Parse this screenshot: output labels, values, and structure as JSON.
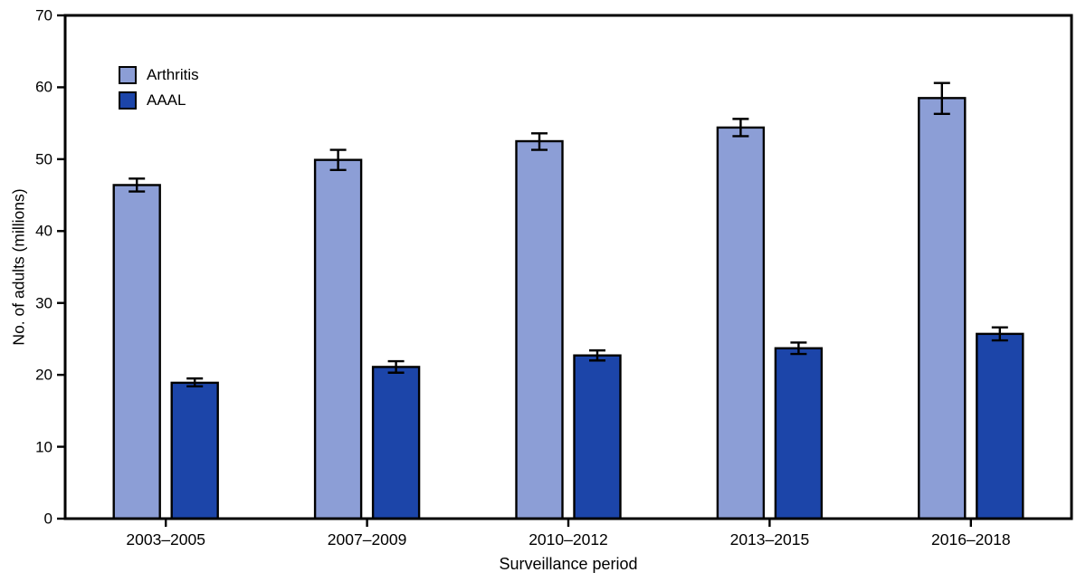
{
  "chart_data": {
    "type": "bar",
    "categories": [
      "2003–2005",
      "2007–2009",
      "2010–2012",
      "2013–2015",
      "2016–2018"
    ],
    "series": [
      {
        "name": "Arthritis",
        "color": "#8C9ED6",
        "values": [
          46.4,
          49.9,
          52.5,
          54.4,
          58.5
        ],
        "ci_low": [
          45.5,
          48.5,
          51.3,
          53.2,
          56.3
        ],
        "ci_high": [
          47.3,
          51.3,
          53.6,
          55.6,
          60.6
        ]
      },
      {
        "name": "AAAL",
        "color": "#1C45A9",
        "values": [
          18.9,
          21.1,
          22.7,
          23.7,
          25.7
        ],
        "ci_low": [
          18.4,
          20.3,
          22.0,
          22.9,
          24.8
        ],
        "ci_high": [
          19.5,
          21.9,
          23.4,
          24.5,
          26.6
        ]
      }
    ],
    "xlabel": "Surveillance period",
    "ylabel": "No. of adults (millions)",
    "ylim": [
      0,
      70
    ],
    "yticks": [
      0,
      10,
      20,
      30,
      40,
      50,
      60,
      70
    ],
    "grid": false,
    "error_bars": true,
    "legend_position": "upper-left-inside",
    "axis_color": "#000000",
    "background": "#ffffff"
  }
}
